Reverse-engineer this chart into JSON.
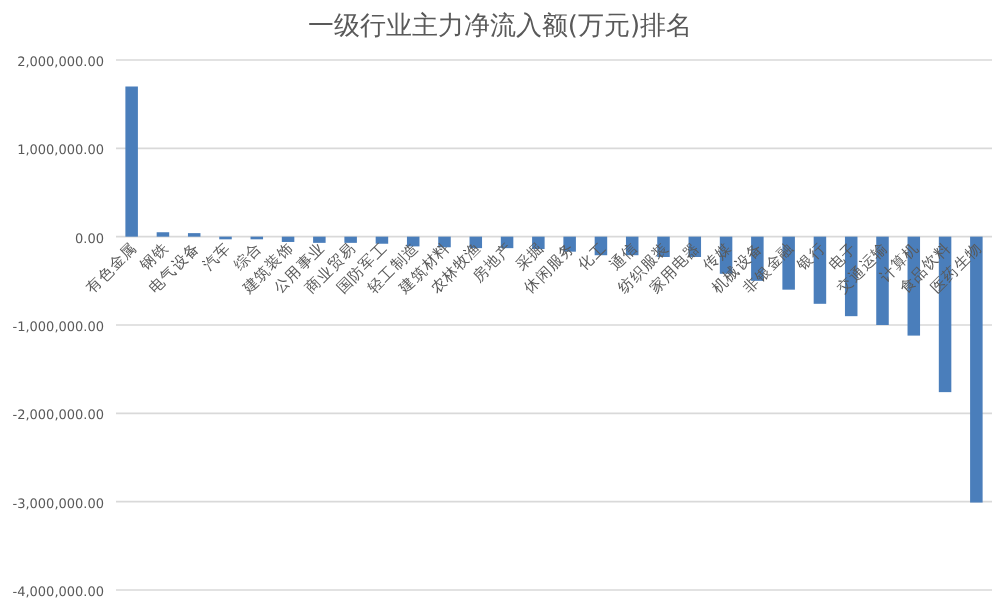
{
  "chart_data": {
    "type": "bar",
    "title": "一级行业主力净流入额(万元)排名",
    "categories": [
      "有色金属",
      "钢铁",
      "电气设备",
      "汽车",
      "综合",
      "建筑装饰",
      "公用事业",
      "商业贸易",
      "国防军工",
      "轻工制造",
      "建筑材料",
      "农林牧渔",
      "房地产",
      "采掘",
      "休闲服务",
      "化工",
      "通信",
      "纺织服装",
      "家用电器",
      "传媒",
      "机械设备",
      "非银金融",
      "银行",
      "电子",
      "交通运输",
      "计算机",
      "食品饮料",
      "医药生物"
    ],
    "values": [
      1700000,
      50000,
      40000,
      -30000,
      -30000,
      -60000,
      -70000,
      -70000,
      -80000,
      -110000,
      -120000,
      -130000,
      -130000,
      -140000,
      -170000,
      -210000,
      -210000,
      -230000,
      -230000,
      -420000,
      -500000,
      -600000,
      -760000,
      -900000,
      -1000000,
      -1120000,
      -1760000,
      -3010000
    ],
    "color": "#4a7ebb",
    "ylim": [
      -4000000,
      2000000
    ],
    "yticks": [
      {
        "value": 2000000,
        "label": "2,000,000.00"
      },
      {
        "value": 1000000,
        "label": "1,000,000.00"
      },
      {
        "value": 0,
        "label": "0.00"
      },
      {
        "value": -1000000,
        "label": "-1,000,000.00"
      },
      {
        "value": -2000000,
        "label": "-2,000,000.00"
      },
      {
        "value": -3000000,
        "label": "-3,000,000.00"
      },
      {
        "value": -4000000,
        "label": "-4,000,000.00"
      }
    ],
    "grid": "y"
  }
}
